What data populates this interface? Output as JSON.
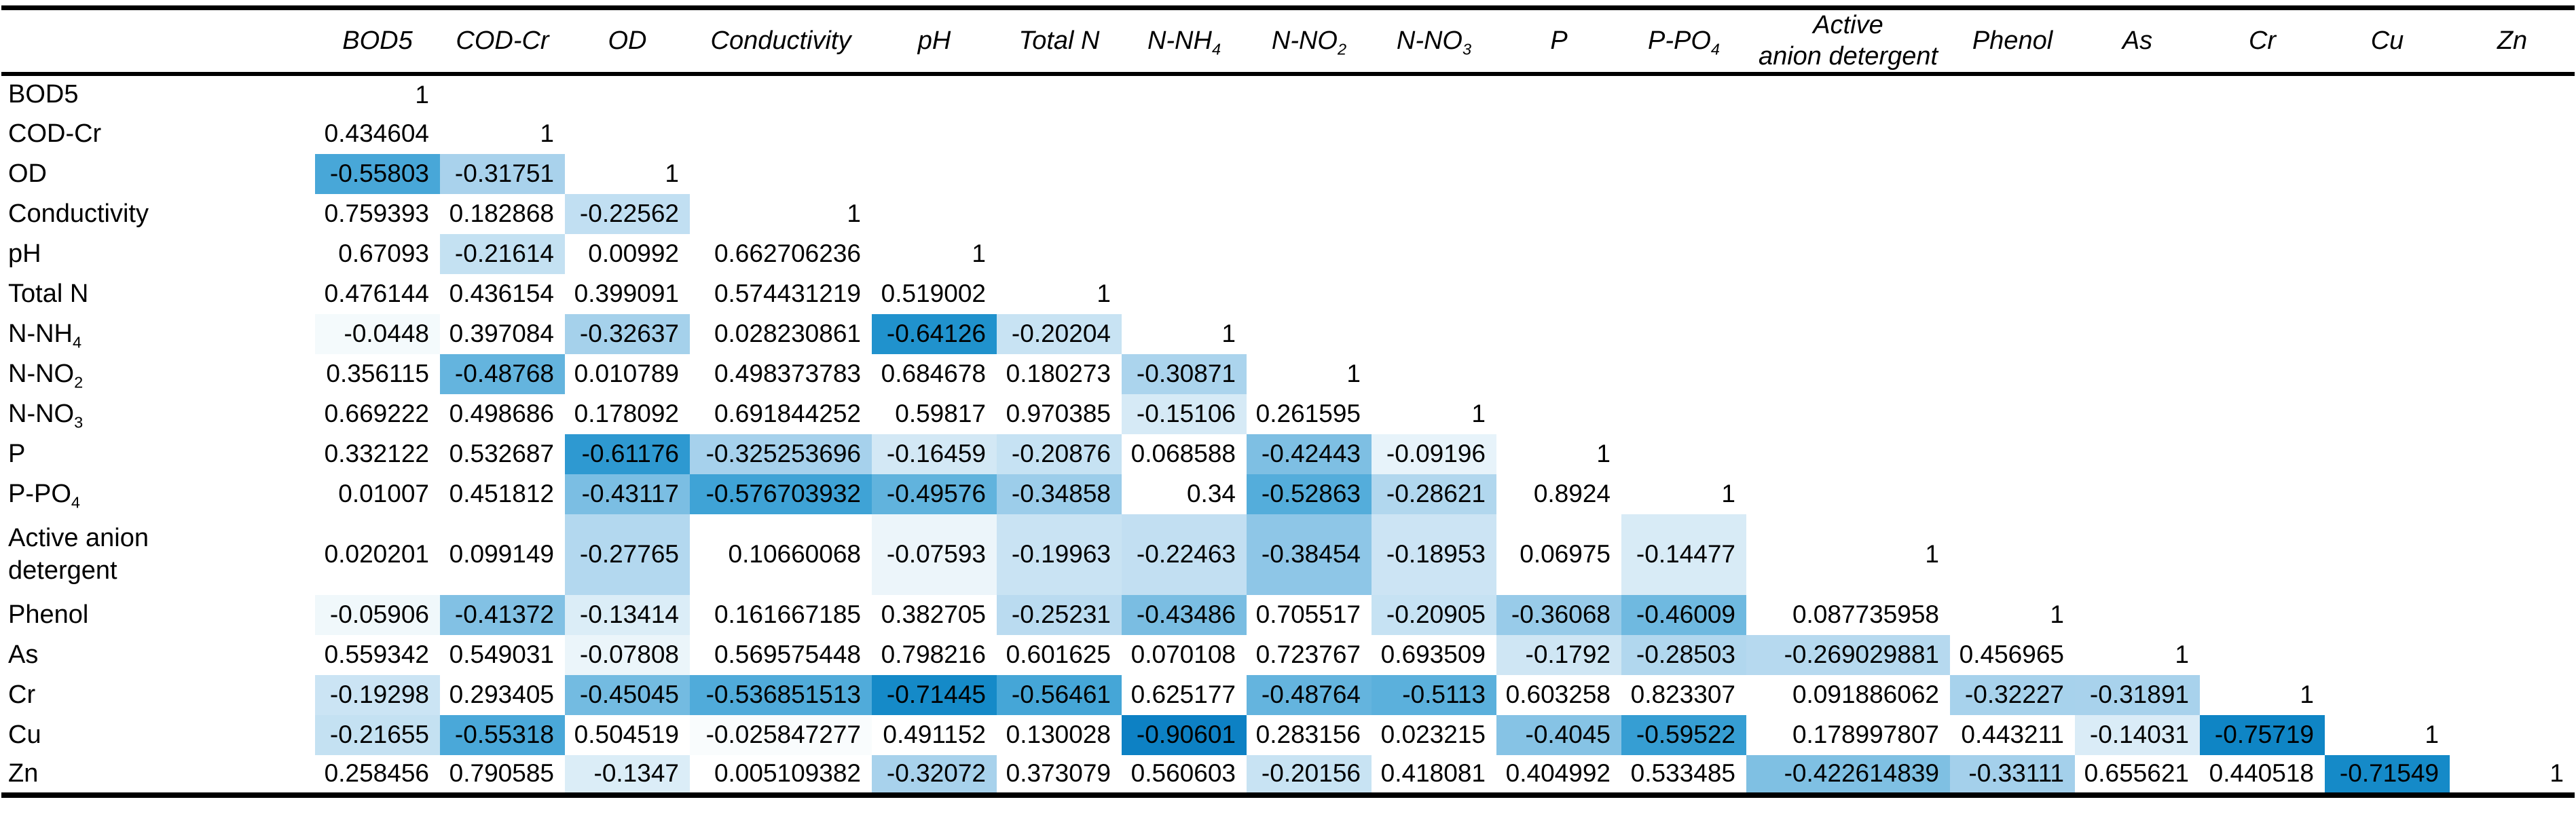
{
  "chart_data": {
    "type": "heatmap",
    "subtype": "correlation-matrix",
    "triangular": "lower",
    "corner_label": "",
    "columns": [
      "BOD5",
      "COD-Cr",
      "OD",
      "Conductivity",
      "pH",
      "Total N",
      "N-NH_4",
      "N-NO_2",
      "N-NO_3",
      "P",
      "P-PO_4",
      "Active\nanion detergent",
      "Phenol",
      "As",
      "Cr",
      "Cu",
      "Zn"
    ],
    "rows": [
      "BOD5",
      "COD-Cr",
      "OD",
      "Conductivity",
      "pH",
      "Total N",
      "N-NH_4",
      "N-NO_2",
      "N-NO_3",
      "P",
      "P-PO_4",
      "Active anion\ndetergent",
      "Phenol",
      "As",
      "Cr",
      "Cu",
      "Zn"
    ],
    "matrix": [
      [
        "1"
      ],
      [
        "0.434604",
        "1"
      ],
      [
        "-0.55803",
        "-0.31751",
        "1"
      ],
      [
        "0.759393",
        "0.182868",
        "-0.22562",
        "1"
      ],
      [
        "0.67093",
        "-0.21614",
        "0.00992",
        "0.662706236",
        "1"
      ],
      [
        "0.476144",
        "0.436154",
        "0.399091",
        "0.574431219",
        "0.519002",
        "1"
      ],
      [
        "-0.0448",
        "0.397084",
        "-0.32637",
        "0.028230861",
        "-0.64126",
        "-0.20204",
        "1"
      ],
      [
        "0.356115",
        "-0.48768",
        "0.010789",
        "0.498373783",
        "0.684678",
        "0.180273",
        "-0.30871",
        "1"
      ],
      [
        "0.669222",
        "0.498686",
        "0.178092",
        "0.691844252",
        "0.59817",
        "0.970385",
        "-0.15106",
        "0.261595",
        "1"
      ],
      [
        "0.332122",
        "0.532687",
        "-0.61176",
        "-0.325253696",
        "-0.16459",
        "-0.20876",
        "0.068588",
        "-0.42443",
        "-0.09196",
        "1"
      ],
      [
        "0.01007",
        "0.451812",
        "-0.43117",
        "-0.576703932",
        "-0.49576",
        "-0.34858",
        "0.34",
        "-0.52863",
        "-0.28621",
        "0.8924",
        "1"
      ],
      [
        "0.020201",
        "0.099149",
        "-0.27765",
        "0.10660068",
        "-0.07593",
        "-0.19963",
        "-0.22463",
        "-0.38454",
        "-0.18953",
        "0.06975",
        "-0.14477",
        "1"
      ],
      [
        "-0.05906",
        "-0.41372",
        "-0.13414",
        "0.161667185",
        "0.382705",
        "-0.25231",
        "-0.43486",
        "0.705517",
        "-0.20905",
        "-0.36068",
        "-0.46009",
        "0.087735958",
        "1"
      ],
      [
        "0.559342",
        "0.549031",
        "-0.07808",
        "0.569575448",
        "0.798216",
        "0.601625",
        "0.070108",
        "0.723767",
        "0.693509",
        "-0.1792",
        "-0.28503",
        "-0.269029881",
        "0.456965",
        "1"
      ],
      [
        "-0.19298",
        "0.293405",
        "-0.45045",
        "-0.536851513",
        "-0.71445",
        "-0.56461",
        "0.625177",
        "-0.48764",
        "-0.5113",
        "0.603258",
        "0.823307",
        "0.091886062",
        "-0.32227",
        "-0.31891",
        "1"
      ],
      [
        "-0.21655",
        "-0.55318",
        "0.504519",
        "-0.025847277",
        "0.491152",
        "0.130028",
        "-0.90601",
        "0.283156",
        "0.023215",
        "-0.4045",
        "-0.59522",
        "0.178997807",
        "0.443211",
        "-0.14031",
        "-0.75719",
        "1"
      ],
      [
        "0.258456",
        "0.790585",
        "-0.1347",
        "0.005109382",
        "-0.32072",
        "0.373079",
        "0.560603",
        "-0.20156",
        "0.418081",
        "0.404992",
        "0.533485",
        "-0.422614839",
        "-0.33111",
        "0.655621",
        "0.440518",
        "-0.71549",
        "1"
      ]
    ],
    "legend_position": "none",
    "grid": false,
    "cell_fill_rule": "positive or empty cells are white; negative cells shaded blue with darkness proportional to magnitude"
  },
  "style": {
    "rule_color": "#000000",
    "negative_accent_color": "#0C7EC3",
    "positive_cell_color": "#FFFFFF",
    "shade_stops": [
      [
        0.0,
        [
          255,
          255,
          255
        ]
      ],
      [
        0.05,
        [
          243,
          249,
          252
        ]
      ],
      [
        0.22,
        [
          195,
          224,
          242
        ]
      ],
      [
        0.32,
        [
          168,
          210,
          236
        ]
      ],
      [
        0.56,
        [
          71,
          167,
          216
        ]
      ],
      [
        0.64,
        [
          32,
          146,
          205
        ]
      ],
      [
        0.76,
        [
          15,
          133,
          197
        ]
      ],
      [
        1.0,
        [
          12,
          126,
          195
        ]
      ]
    ]
  },
  "layout": {
    "label_col_width": 462,
    "narrow_col_width": 184,
    "conductivity_col_width": 268,
    "active_anion_detergent_col_width": 300
  }
}
